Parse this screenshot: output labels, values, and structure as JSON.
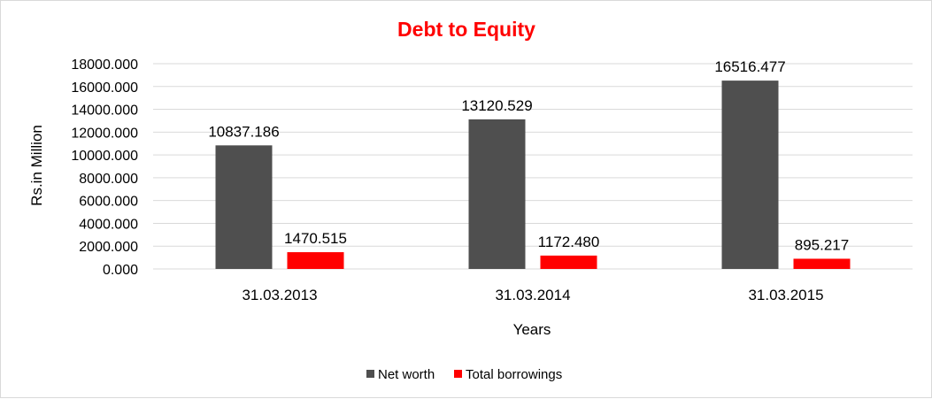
{
  "chart_data": {
    "type": "bar",
    "title": "Debt to Equity",
    "xlabel": "Years",
    "ylabel": "Rs.in Million",
    "categories": [
      "31.03.2013",
      "31.03.2014",
      "31.03.2015"
    ],
    "series": [
      {
        "name": "Net worth",
        "color": "#4f4f4f",
        "values": [
          10837.186,
          13120.529,
          16516.477
        ],
        "labels": [
          "10837.186",
          "13120.529",
          "16516.477"
        ]
      },
      {
        "name": "Total borrowings",
        "color": "#ff0000",
        "values": [
          1470.515,
          1172.48,
          895.217
        ],
        "labels": [
          "1470.515",
          "1172.480",
          "895.217"
        ]
      }
    ],
    "ylim": [
      0,
      18000
    ],
    "yticks": [
      0,
      2000,
      4000,
      6000,
      8000,
      10000,
      12000,
      14000,
      16000,
      18000
    ],
    "ytick_labels": [
      "0.000",
      "2000.000",
      "4000.000",
      "6000.000",
      "8000.000",
      "10000.000",
      "12000.000",
      "14000.000",
      "16000.000",
      "18000.000"
    ],
    "grid": true,
    "legend_position": "bottom",
    "title_color": "#ff0000",
    "gridline_color": "#d9d9d9"
  }
}
